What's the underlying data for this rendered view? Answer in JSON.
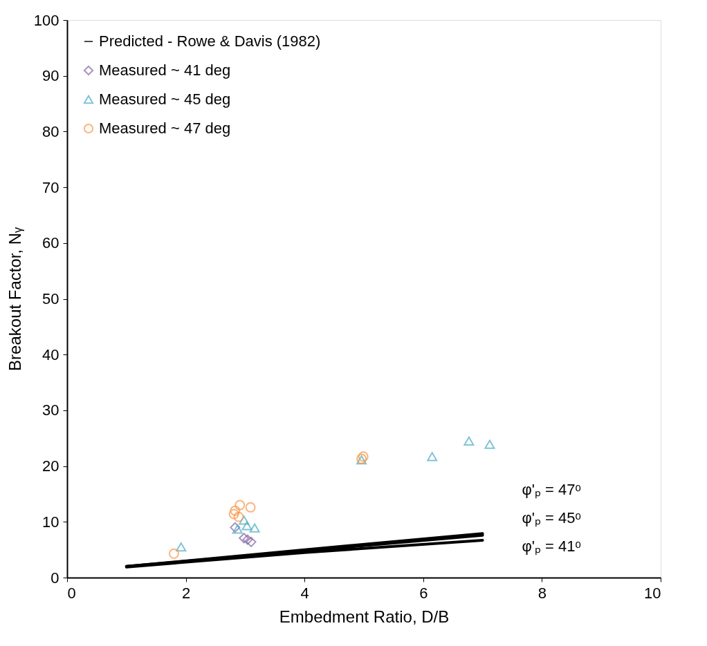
{
  "chart_data": {
    "type": "scatter",
    "xlabel": "Embedment Ratio, D/B",
    "ylabel": "Breakout Factor, Nᵧ",
    "xlim": [
      0,
      10
    ],
    "xticks": [
      0,
      2,
      4,
      6,
      8,
      10
    ],
    "ylim": [
      0,
      100
    ],
    "yticks": [
      0,
      10,
      20,
      30,
      40,
      50,
      60,
      70,
      80,
      90,
      100
    ],
    "grid": false,
    "legend": "top left",
    "series": [
      {
        "name": "Predicted - Rowe & Davis (1982)",
        "type": "line",
        "color": "#000000",
        "marker": "none",
        "x": [
          1,
          4,
          7
        ],
        "values": [
          2.0,
          5.0,
          7.9
        ]
      },
      {
        "type": "line",
        "color": "#000000",
        "x": [
          1,
          4,
          7
        ],
        "values": [
          2.0,
          4.8,
          7.6
        ]
      },
      {
        "type": "line",
        "color": "#000000",
        "x": [
          1,
          4,
          7
        ],
        "values": [
          1.9,
          4.5,
          6.7
        ]
      },
      {
        "name": "Measured ~ 41 deg",
        "color": "#8064a2",
        "marker": "diamond",
        "x": [
          2.83,
          3.04,
          3.1,
          2.98
        ],
        "values": [
          9.0,
          6.8,
          6.4,
          7.1
        ]
      },
      {
        "name": "Measured ~ 45 deg",
        "color": "#4bacc6",
        "marker": "triangle",
        "x": [
          1.92,
          2.87,
          3.03,
          3.16,
          2.98,
          4.96,
          6.15,
          6.77,
          7.12
        ],
        "values": [
          5.5,
          8.7,
          9.3,
          8.9,
          10.3,
          21.1,
          21.7,
          24.5,
          23.9
        ]
      },
      {
        "name": "Measured ~ 47 deg",
        "color": "#f79646",
        "marker": "circle",
        "x": [
          1.8,
          2.83,
          2.91,
          3.09,
          2.81,
          2.89,
          4.96,
          4.99
        ],
        "values": [
          4.3,
          12.0,
          13.0,
          12.6,
          11.4,
          10.9,
          21.3,
          21.7
        ]
      }
    ],
    "annotations": [
      "φ'ₚ = 47ᵒ",
      "φ'ₚ = 45ᵒ",
      "φ'ₚ = 41ᵒ"
    ]
  }
}
